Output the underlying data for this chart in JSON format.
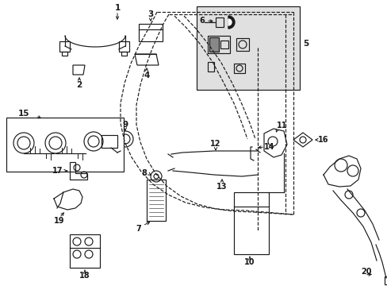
{
  "bg_color": "#ffffff",
  "lc": "#1a1a1a",
  "box5_fill": "#e0e0e0",
  "box15_fill": "#ffffff",
  "fs": 7.5,
  "lw": 0.85
}
